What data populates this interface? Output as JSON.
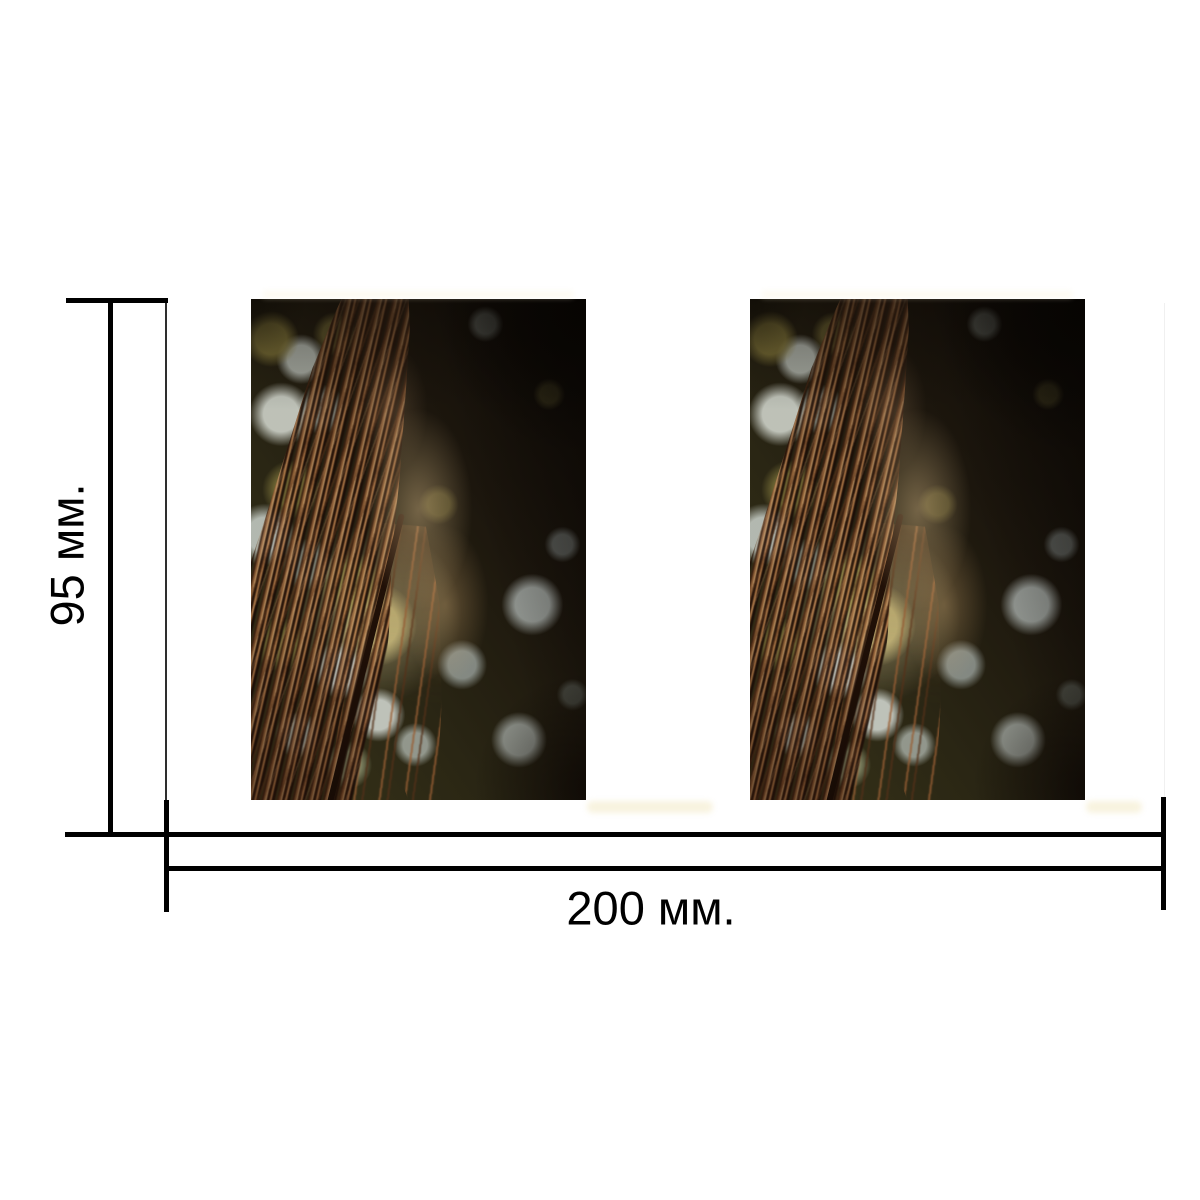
{
  "page": {
    "background": "#ffffff"
  },
  "dimension_annotations": {
    "height_label": "95 мм.",
    "width_label": "200 мм.",
    "line_color": "#000000",
    "text_color": "#000000"
  },
  "photos": [
    {
      "id": "product-photo-1",
      "subject": "dried-hanging-roots-with-bokeh-foliage"
    },
    {
      "id": "product-photo-2",
      "subject": "dried-hanging-roots-with-bokeh-foliage"
    }
  ]
}
